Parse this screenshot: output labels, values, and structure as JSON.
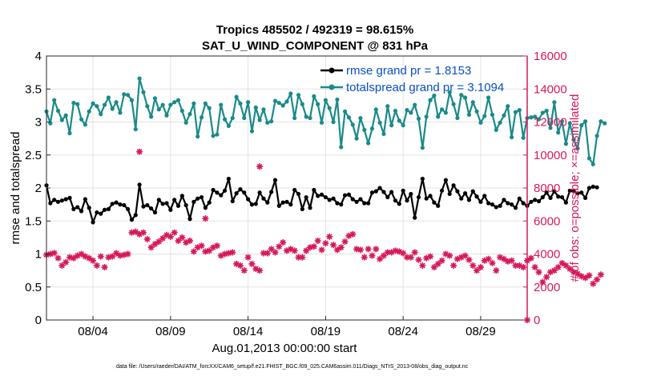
{
  "colors": {
    "rmse": "#000000",
    "totalspread": "#1a8a8a",
    "obs": "#d6195a",
    "legend_text": "#0a50c8",
    "grid": "#e3e3e3"
  },
  "chart_data": {
    "type": "line",
    "title_line1": "Tropics 485502 / 492319 = 98.615%",
    "title_line2": "SAT_U_WIND_COMPONENT @ 831 hPa",
    "xlabel": "Aug.01,2013 00:00:00 start",
    "ylabel_left": "rmse and totalspread",
    "ylabel_right": "# of obs: o=possible; ×=assimilated",
    "footnote": "data file: /Users/raeder/DAI/ATM_forcXX/CAM6_setup/f.e21.FHIST_BGC.f09_025.CAM6assim.011/Diags_NTrS_2013-08/obs_diag_output.nc",
    "xlim": [
      1.0,
      32.0
    ],
    "ylim_left": [
      0,
      4
    ],
    "ylim_right": [
      0,
      16000
    ],
    "x_ticks": [
      {
        "x": 4,
        "label": "08/04"
      },
      {
        "x": 9,
        "label": "08/09"
      },
      {
        "x": 14,
        "label": "08/14"
      },
      {
        "x": 19,
        "label": "08/19"
      },
      {
        "x": 24,
        "label": "08/24"
      },
      {
        "x": 29,
        "label": "08/29"
      }
    ],
    "y_ticks_left": [
      {
        "value": 0,
        "label": "0"
      },
      {
        "value": 0.5,
        "label": "0.5"
      },
      {
        "value": 1,
        "label": "1"
      },
      {
        "value": 1.5,
        "label": "1.5"
      },
      {
        "value": 2,
        "label": "2"
      },
      {
        "value": 2.5,
        "label": "2.5"
      },
      {
        "value": 3,
        "label": "3"
      },
      {
        "value": 3.5,
        "label": "3.5"
      },
      {
        "value": 4,
        "label": "4"
      }
    ],
    "y_ticks_right": [
      {
        "value": 0,
        "label": "0"
      },
      {
        "value": 2000,
        "label": "2000"
      },
      {
        "value": 4000,
        "label": "4000"
      },
      {
        "value": 6000,
        "label": "6000"
      },
      {
        "value": 8000,
        "label": "8000"
      },
      {
        "value": 10000,
        "label": "10000"
      },
      {
        "value": 12000,
        "label": "12000"
      },
      {
        "value": 14000,
        "label": "14000"
      },
      {
        "value": 16000,
        "label": "16000"
      }
    ],
    "x_start": 1.0,
    "x_step": 0.25,
    "series": [
      {
        "name": "rmse grand pr = 1.8153",
        "axis": "left",
        "values": [
          2.04,
          1.77,
          1.82,
          1.79,
          1.81,
          1.83,
          1.85,
          1.68,
          1.71,
          1.65,
          1.83,
          1.7,
          1.48,
          1.63,
          1.61,
          1.67,
          1.68,
          1.76,
          1.78,
          1.75,
          1.74,
          1.68,
          1.52,
          1.59,
          2.05,
          1.72,
          1.74,
          1.69,
          1.63,
          1.82,
          1.76,
          1.77,
          1.67,
          1.82,
          1.73,
          1.88,
          1.74,
          1.53,
          1.79,
          1.84,
          1.86,
          1.7,
          1.78,
          1.97,
          1.93,
          1.89,
          1.96,
          2.14,
          1.8,
          1.92,
          1.98,
          1.93,
          1.83,
          1.75,
          1.76,
          1.93,
          1.84,
          1.78,
          1.94,
          2.12,
          1.73,
          1.78,
          1.79,
          1.75,
          1.97,
          1.91,
          1.68,
          1.86,
          1.7,
          1.97,
          1.88,
          1.9,
          1.86,
          1.82,
          1.84,
          1.77,
          1.75,
          1.89,
          1.9,
          1.83,
          1.79,
          1.83,
          1.77,
          1.77,
          1.93,
          1.95,
          2.0,
          1.94,
          1.86,
          1.94,
          1.81,
          1.76,
          1.96,
          1.81,
          1.91,
          1.55,
          1.86,
          2.14,
          1.84,
          1.88,
          1.78,
          1.73,
          1.96,
          2.12,
          1.91,
          2.04,
          1.95,
          1.84,
          1.92,
          1.82,
          1.95,
          1.87,
          1.79,
          1.88,
          1.77,
          1.75,
          1.71,
          1.73,
          1.82,
          1.77,
          1.75,
          1.7,
          1.84,
          1.77,
          1.73,
          1.79,
          1.82,
          1.8,
          1.86,
          1.93,
          1.85,
          1.95,
          1.87,
          1.86,
          1.78,
          1.96,
          1.95,
          1.92,
          1.93,
          1.85,
          2.0,
          2.02,
          2.01
        ]
      },
      {
        "name": "totalspread grand pr = 3.1094",
        "axis": "left",
        "values": [
          3.16,
          2.98,
          3.33,
          3.17,
          3.03,
          3.1,
          2.83,
          3.29,
          3.27,
          3.04,
          2.96,
          3.16,
          3.28,
          3.24,
          3.12,
          3.26,
          3.37,
          3.2,
          3.3,
          3.14,
          3.42,
          3.41,
          3.33,
          2.89,
          3.66,
          3.45,
          3.24,
          3.08,
          3.36,
          3.19,
          3.26,
          3.1,
          3.26,
          3.3,
          3.33,
          3.17,
          2.99,
          3.12,
          3.28,
          2.78,
          3.07,
          3.28,
          3.21,
          2.79,
          2.81,
          3.26,
          3.04,
          2.94,
          3.06,
          3.38,
          3.28,
          3.06,
          3.3,
          2.86,
          3.22,
          3.03,
          3.19,
          2.99,
          3.01,
          3.32,
          3.29,
          3.25,
          3.31,
          3.43,
          3.06,
          3.41,
          3.27,
          3.08,
          3.06,
          3.39,
          3.27,
          2.99,
          3.33,
          3.21,
          3.0,
          3.34,
          2.62,
          3.16,
          3.07,
          2.96,
          2.75,
          3.06,
          2.88,
          2.68,
          2.9,
          3.19,
          2.99,
          2.82,
          3.24,
          2.95,
          3.17,
          3.02,
          2.95,
          3.18,
          3.14,
          3.26,
          3.05,
          2.61,
          3.08,
          3.33,
          3.4,
          3.08,
          3.19,
          3.14,
          3.45,
          3.27,
          3.06,
          3.41,
          3.37,
          3.11,
          3.3,
          3.16,
          2.99,
          3.09,
          3.37,
          3.11,
          2.88,
          2.99,
          3.1,
          3.24,
          2.77,
          3.15,
          3.18,
          2.76,
          3.06,
          3.07,
          3.08,
          3.04,
          3.14,
          3.17,
          2.91,
          3.3,
          2.84,
          3.01,
          2.67,
          2.98,
          2.73,
          2.6,
          2.95,
          3.01,
          2.45,
          2.36,
          2.79,
          3.01,
          2.98
        ]
      },
      {
        "name": "obs possible / assimilated",
        "axis": "right",
        "values": [
          3950,
          4000,
          4060,
          3750,
          3300,
          3500,
          3800,
          3750,
          3900,
          4000,
          3850,
          3750,
          3600,
          3300,
          3850,
          3200,
          3800,
          3850,
          4050,
          3900,
          3950,
          4000,
          5300,
          5350,
          5200,
          5300,
          4900,
          4400,
          4600,
          4750,
          4950,
          5150,
          5050,
          5300,
          4800,
          5000,
          4700,
          4800,
          4150,
          4400,
          4500,
          4150,
          4200,
          4400,
          4500,
          3900,
          4000,
          4050,
          4100,
          3400,
          3300,
          3000,
          3800,
          3400,
          3100,
          3000,
          4050,
          4050,
          4300,
          4100,
          4450,
          4700,
          4200,
          4300,
          4200,
          3800,
          3800,
          4200,
          4400,
          4450,
          4800,
          4250,
          4650,
          5050,
          4550,
          4250,
          4400,
          4750,
          5100,
          5200,
          4300,
          4250,
          3800,
          4300,
          3900,
          4300,
          3700,
          3900,
          4100,
          4100,
          4200,
          4150,
          4050,
          3800,
          3800,
          4100,
          3650,
          3300,
          3750,
          3850,
          3200,
          3400,
          3600,
          4000,
          3900,
          3300,
          3700,
          3800,
          3900,
          3650,
          3300,
          3000,
          3200,
          3600,
          3700,
          3450,
          3000,
          3800,
          3700,
          3550,
          3600,
          3300,
          3300,
          3200,
          3600,
          3750,
          3200,
          2900,
          2300,
          2600,
          2900,
          3000,
          3200,
          3450,
          3300,
          3100,
          2900,
          2800,
          2650,
          2550,
          2700,
          2200,
          2450,
          2750
        ]
      }
    ],
    "obs_outliers": [
      {
        "x": 7.0,
        "value": 10200
      },
      {
        "x": 14.75,
        "value": 9300
      },
      {
        "x": 11.25,
        "value": 6150
      },
      {
        "x": 32.0,
        "value": 0
      }
    ]
  }
}
